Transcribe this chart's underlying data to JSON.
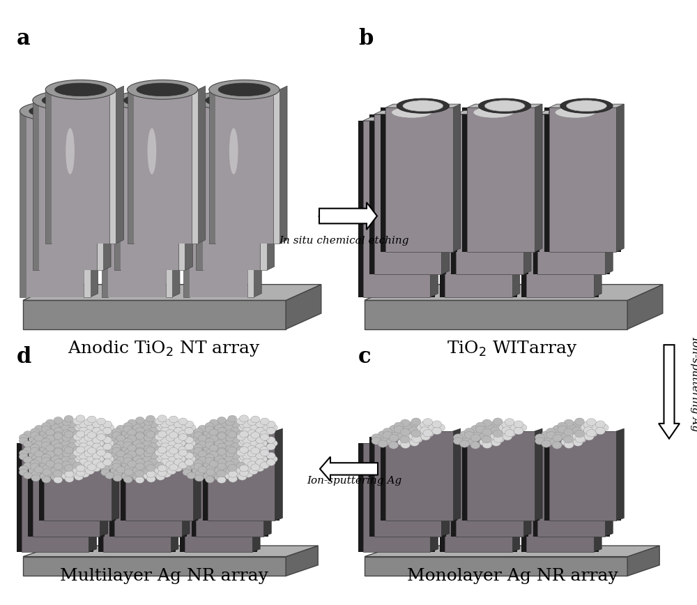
{
  "background_color": "#ffffff",
  "figure_size": [
    10.0,
    8.67
  ],
  "dpi": 100,
  "label_fontsize": 22,
  "title_fontsize": 18,
  "arrow_fontsize": 11,
  "panels": {
    "a": {
      "label": "a",
      "title": "Anodic TiO₂ NT array"
    },
    "b": {
      "label": "b",
      "title": "TiO₂ WITarray"
    },
    "c": {
      "label": "c",
      "title": "Monolayer Ag NR array"
    },
    "d": {
      "label": "d",
      "title": "Multilayer Ag NR array"
    }
  },
  "colors": {
    "tube_light": "#c8c8c8",
    "tube_mid": "#999999",
    "tube_dark": "#666666",
    "tube_vdark": "#333333",
    "pillar_dark": "#1a1a1a",
    "pillar_mid": "#555555",
    "pillar_side": "#3a3a3a",
    "base_top": "#aaaaaa",
    "base_front": "#888888",
    "base_right": "#666666",
    "nanoparticle": "#d0d0d0",
    "nanoparticle_edge": "#999999",
    "purple_tint": "#c8a0c8"
  }
}
